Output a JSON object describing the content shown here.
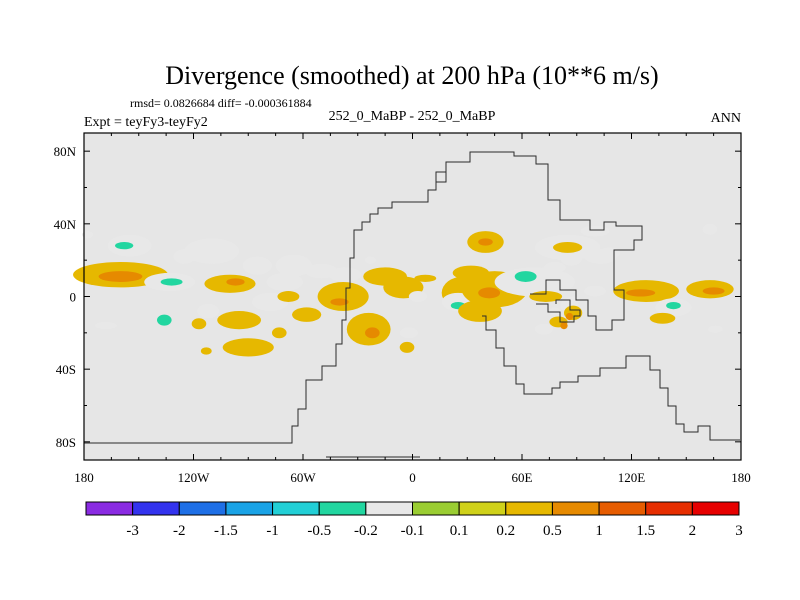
{
  "chart_data": {
    "type": "heatmap",
    "title": "Divergence (smoothed) at 200 hPa (10**6 m/s)",
    "stats": "rmsd= 0.0826684 diff= -0.000361884",
    "experiment": "Expt = teyFy3-teyFy2",
    "center_label": "252_0_MaBP - 252_0_MaBP",
    "season": "ANN",
    "x_range": [
      -180,
      180
    ],
    "y_range": [
      -90,
      90
    ],
    "x_ticks": [
      {
        "value": -180,
        "label": "180"
      },
      {
        "value": -120,
        "label": "120W"
      },
      {
        "value": -60,
        "label": "60W"
      },
      {
        "value": 0,
        "label": "0"
      },
      {
        "value": 60,
        "label": "60E"
      },
      {
        "value": 120,
        "label": "120E"
      },
      {
        "value": 180,
        "label": "180"
      }
    ],
    "y_ticks": [
      {
        "value": 80,
        "label": "80N"
      },
      {
        "value": 40,
        "label": "40N"
      },
      {
        "value": 0,
        "label": "0"
      },
      {
        "value": -40,
        "label": "40S"
      },
      {
        "value": -80,
        "label": "80S"
      }
    ],
    "colorbar": {
      "colors": [
        "#8a2be2",
        "#3333ee",
        "#1e6fe6",
        "#1aa3e6",
        "#22cfd6",
        "#22d6a0",
        "#e8e8e8",
        "#9acd32",
        "#cfd11a",
        "#e6b800",
        "#e68a00",
        "#e65c00",
        "#e62e00",
        "#e60000"
      ],
      "labels": [
        "-3",
        "-2",
        "-1.5",
        "-1",
        "-0.5",
        "-0.2",
        "-0.1",
        "0.1",
        "0.2",
        "0.5",
        "1",
        "1.5",
        "2",
        "3"
      ]
    },
    "anomaly_patches": [
      {
        "lon": -160,
        "lat": 12,
        "rlon": 26,
        "rlat": 7,
        "level": 0.2
      },
      {
        "lon": -160,
        "lat": 11,
        "rlon": 12,
        "rlat": 3,
        "level": 0.5
      },
      {
        "lon": -133,
        "lat": 8,
        "rlon": 14,
        "rlat": 5,
        "level": -0.2
      },
      {
        "lon": -132,
        "lat": 8,
        "rlon": 6,
        "rlat": 2,
        "level": -0.5
      },
      {
        "lon": -155,
        "lat": 28,
        "rlon": 12,
        "rlat": 6,
        "level": -0.2
      },
      {
        "lon": -158,
        "lat": 28,
        "rlon": 5,
        "rlat": 2,
        "level": -0.5
      },
      {
        "lon": -110,
        "lat": 25,
        "rlon": 15,
        "rlat": 7,
        "level": -0.2
      },
      {
        "lon": -125,
        "lat": 22,
        "rlon": 6,
        "rlat": 4,
        "level": -0.2
      },
      {
        "lon": -100,
        "lat": 7,
        "rlon": 14,
        "rlat": 5,
        "level": 0.2
      },
      {
        "lon": -97,
        "lat": 8,
        "rlon": 5,
        "rlat": 2,
        "level": 0.5
      },
      {
        "lon": -85,
        "lat": 17,
        "rlon": 8,
        "rlat": 5,
        "level": -0.2
      },
      {
        "lon": -65,
        "lat": 17,
        "rlon": 10,
        "rlat": 6,
        "level": -0.2
      },
      {
        "lon": -50,
        "lat": 14,
        "rlon": 9,
        "rlat": 4,
        "level": -0.2
      },
      {
        "lon": -70,
        "lat": 8,
        "rlon": 10,
        "rlat": 5,
        "level": -0.2
      },
      {
        "lon": -78,
        "lat": -3,
        "rlon": 10,
        "rlat": 5,
        "level": -0.2
      },
      {
        "lon": -68,
        "lat": 0,
        "rlon": 6,
        "rlat": 3,
        "level": 0.2
      },
      {
        "lon": -112,
        "lat": -8,
        "rlon": 6,
        "rlat": 4,
        "level": -0.2
      },
      {
        "lon": -95,
        "lat": -13,
        "rlon": 12,
        "rlat": 5,
        "level": 0.2
      },
      {
        "lon": -58,
        "lat": -10,
        "rlon": 8,
        "rlat": 4,
        "level": 0.2
      },
      {
        "lon": -168,
        "lat": -16,
        "rlon": 6,
        "rlat": 2,
        "level": -0.2
      },
      {
        "lon": -136,
        "lat": -13,
        "rlon": 4,
        "rlat": 3,
        "level": -0.5
      },
      {
        "lon": -117,
        "lat": -15,
        "rlon": 4,
        "rlat": 3,
        "level": 0.2
      },
      {
        "lon": -73,
        "lat": -20,
        "rlon": 4,
        "rlat": 3,
        "level": 0.2
      },
      {
        "lon": -113,
        "lat": -30,
        "rlon": 3,
        "rlat": 2,
        "level": 0.2
      },
      {
        "lon": -90,
        "lat": -28,
        "rlon": 14,
        "rlat": 5,
        "level": 0.2
      },
      {
        "lon": -38,
        "lat": 0,
        "rlon": 14,
        "rlat": 8,
        "level": 0.2
      },
      {
        "lon": -40,
        "lat": -3,
        "rlon": 5,
        "rlat": 2,
        "level": 0.5
      },
      {
        "lon": -24,
        "lat": -18,
        "rlon": 12,
        "rlat": 9,
        "level": 0.2
      },
      {
        "lon": -22,
        "lat": -20,
        "rlon": 4,
        "rlat": 3,
        "level": 0.5
      },
      {
        "lon": -37,
        "lat": 12,
        "rlon": 9,
        "rlat": 4,
        "level": -0.2
      },
      {
        "lon": -15,
        "lat": 11,
        "rlon": 12,
        "rlat": 5,
        "level": 0.2
      },
      {
        "lon": -5,
        "lat": 5,
        "rlon": 11,
        "rlat": 6,
        "level": 0.2
      },
      {
        "lon": 3,
        "lat": 0,
        "rlon": 5,
        "rlat": 3,
        "level": -0.2
      },
      {
        "lon": -2,
        "lat": -20,
        "rlon": 5,
        "rlat": 3,
        "level": -0.2
      },
      {
        "lon": -3,
        "lat": -28,
        "rlon": 4,
        "rlat": 3,
        "level": 0.2
      },
      {
        "lon": -23,
        "lat": 20,
        "rlon": 3,
        "rlat": 2,
        "level": -0.2
      },
      {
        "lon": 7,
        "lat": 10,
        "rlon": 6,
        "rlat": 2,
        "level": 0.2
      },
      {
        "lon": 28,
        "lat": 2,
        "rlon": 12,
        "rlat": 9,
        "level": 0.2
      },
      {
        "lon": 25,
        "lat": -3,
        "rlon": 9,
        "rlat": 5,
        "level": -0.2
      },
      {
        "lon": 25,
        "lat": -5,
        "rlon": 4,
        "rlat": 2,
        "level": -0.5
      },
      {
        "lon": 37,
        "lat": -8,
        "rlon": 12,
        "rlat": 6,
        "level": 0.2
      },
      {
        "lon": 45,
        "lat": 4,
        "rlon": 18,
        "rlat": 10,
        "level": 0.2
      },
      {
        "lon": 42,
        "lat": 2,
        "rlon": 6,
        "rlat": 3,
        "level": 0.5
      },
      {
        "lon": 32,
        "lat": 13,
        "rlon": 10,
        "rlat": 4,
        "level": 0.2
      },
      {
        "lon": 40,
        "lat": 30,
        "rlon": 10,
        "rlat": 6,
        "level": 0.2
      },
      {
        "lon": 40,
        "lat": 30,
        "rlon": 4,
        "rlat": 2,
        "level": 0.5
      },
      {
        "lon": 67,
        "lat": 8,
        "rlon": 22,
        "rlat": 8,
        "level": -0.2
      },
      {
        "lon": 62,
        "lat": 11,
        "rlon": 6,
        "rlat": 3,
        "level": -0.5
      },
      {
        "lon": 78,
        "lat": 16,
        "rlon": 6,
        "rlat": 3,
        "level": -0.2
      },
      {
        "lon": 87,
        "lat": 21,
        "rlon": 6,
        "rlat": 4,
        "level": -0.2
      },
      {
        "lon": 85,
        "lat": 27,
        "rlon": 18,
        "rlat": 7,
        "level": -0.2
      },
      {
        "lon": 85,
        "lat": 27,
        "rlon": 8,
        "rlat": 3,
        "level": 0.2
      },
      {
        "lon": 100,
        "lat": 36,
        "rlon": 8,
        "rlat": 3,
        "level": -0.2
      },
      {
        "lon": 103,
        "lat": 22,
        "rlon": 9,
        "rlat": 4,
        "level": -0.2
      },
      {
        "lon": 108,
        "lat": 24,
        "rlon": 6,
        "rlat": 3,
        "level": -0.2
      },
      {
        "lon": 73,
        "lat": 0,
        "rlon": 9,
        "rlat": 3,
        "level": 0.2
      },
      {
        "lon": 86,
        "lat": -5,
        "rlon": 5,
        "rlat": 4,
        "level": -0.2
      },
      {
        "lon": 88,
        "lat": -9,
        "rlon": 5,
        "rlat": 4,
        "level": 0.2
      },
      {
        "lon": 86,
        "lat": -11,
        "rlon": 2,
        "rlat": 2,
        "level": 0.5
      },
      {
        "lon": 80,
        "lat": -14,
        "rlon": 5,
        "rlat": 3,
        "level": 0.2
      },
      {
        "lon": 83,
        "lat": -16,
        "rlon": 2,
        "rlat": 2,
        "level": 0.5
      },
      {
        "lon": 100,
        "lat": 3,
        "rlon": 6,
        "rlat": 3,
        "level": -0.2
      },
      {
        "lon": 88,
        "lat": -2,
        "rlon": 4,
        "rlat": 2,
        "level": -0.2
      },
      {
        "lon": 72,
        "lat": -18,
        "rlon": 5,
        "rlat": 3,
        "level": -0.2
      },
      {
        "lon": 78,
        "lat": -8,
        "rlon": 3,
        "rlat": 2,
        "level": -0.2
      },
      {
        "lon": 128,
        "lat": 3,
        "rlon": 18,
        "rlat": 6,
        "level": 0.2
      },
      {
        "lon": 125,
        "lat": 2,
        "rlon": 8,
        "rlat": 2,
        "level": 0.5
      },
      {
        "lon": 143,
        "lat": -6,
        "rlon": 10,
        "rlat": 5,
        "level": -0.2
      },
      {
        "lon": 143,
        "lat": -5,
        "rlon": 4,
        "rlat": 2,
        "level": -0.5
      },
      {
        "lon": 137,
        "lat": -12,
        "rlon": 7,
        "rlat": 3,
        "level": 0.2
      },
      {
        "lon": 163,
        "lat": 4,
        "rlon": 13,
        "rlat": 5,
        "level": 0.2
      },
      {
        "lon": 165,
        "lat": 3,
        "rlon": 6,
        "rlat": 2,
        "level": 0.5
      },
      {
        "lon": 166,
        "lat": -18,
        "rlon": 4,
        "rlat": 2,
        "level": -0.2
      },
      {
        "lon": 163,
        "lat": 37,
        "rlon": 4,
        "rlat": 3,
        "level": -0.2
      },
      {
        "lon": -178,
        "lat": 34,
        "rlon": 3,
        "rlat": 2,
        "level": -0.2
      }
    ]
  }
}
